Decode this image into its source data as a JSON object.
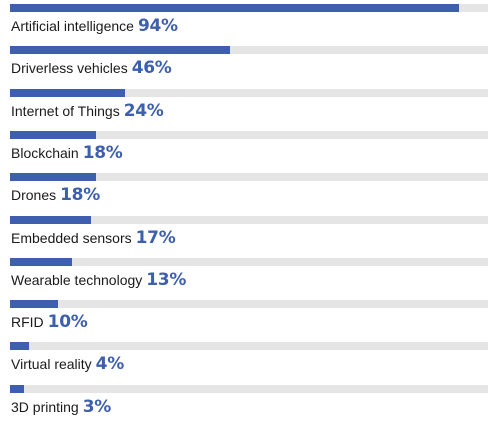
{
  "chart_data": {
    "type": "bar",
    "orientation": "horizontal",
    "categories": [
      "Artificial intelligence",
      "Driverless vehicles",
      "Internet of Things",
      "Blockchain",
      "Drones",
      "Embedded sensors",
      "Wearable technology",
      "RFID",
      "Virtual reality",
      "3D printing"
    ],
    "values": [
      94,
      46,
      24,
      18,
      18,
      17,
      13,
      10,
      4,
      3
    ],
    "value_labels": [
      "94%",
      "46%",
      "24%",
      "18%",
      "18%",
      "17%",
      "13%",
      "10%",
      "4%",
      "3%"
    ],
    "xlim": [
      0,
      100
    ],
    "grid": false,
    "legend": "none"
  },
  "colors": {
    "bar": "#3d5fae",
    "track": "#e5e5e5",
    "value_text": "#3d5fae",
    "label_text": "#1a1a1a"
  }
}
